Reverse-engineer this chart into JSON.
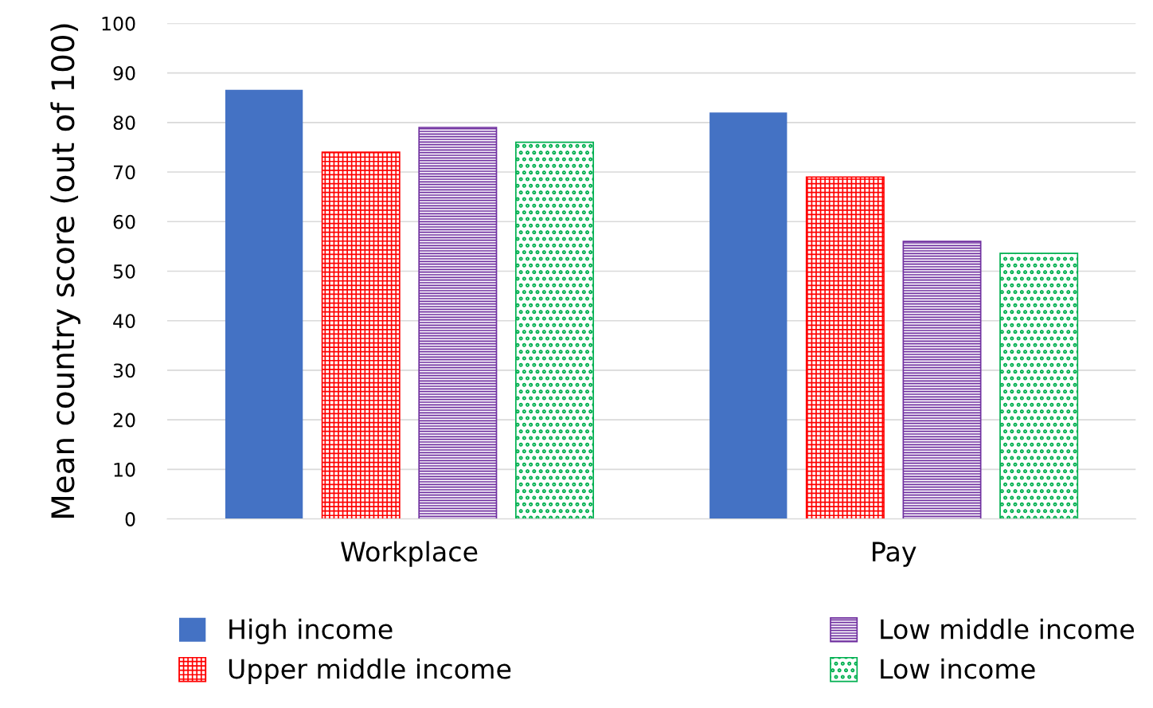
{
  "chart_data": {
    "type": "bar",
    "ylabel": "Mean country score (out of 100)",
    "categories": [
      "Workplace",
      "Pay"
    ],
    "series": [
      {
        "name": "High income",
        "color": "#4472c4",
        "values": [
          86.6,
          82
        ]
      },
      {
        "name": "Upper middle income",
        "color": "#ff0000",
        "values": [
          74,
          69
        ]
      },
      {
        "name": "Low middle income",
        "color": "#7030a0",
        "values": [
          79,
          56
        ]
      },
      {
        "name": "Low income",
        "color": "#00b050",
        "values": [
          76,
          53.6
        ]
      }
    ],
    "ylim": [
      0,
      100
    ],
    "yticks": [
      0,
      10,
      20,
      30,
      40,
      50,
      60,
      70,
      80,
      90,
      100
    ],
    "grid": "y",
    "legend": "bottom"
  }
}
